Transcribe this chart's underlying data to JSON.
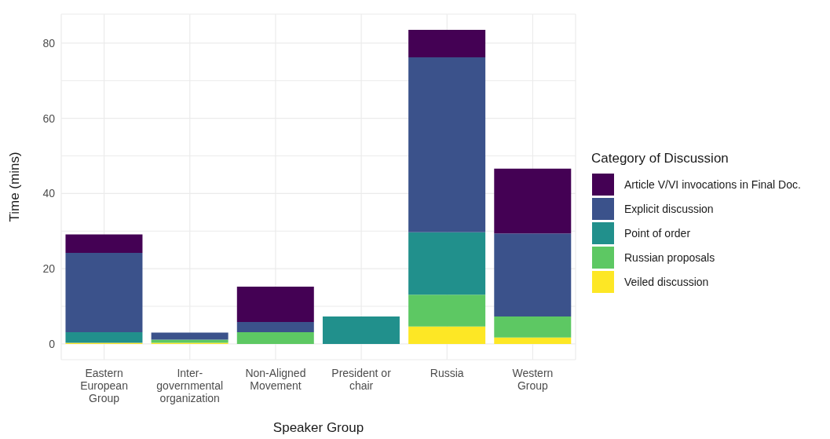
{
  "chart_data": {
    "type": "bar",
    "stacked": true,
    "xlabel": "Speaker Group",
    "ylabel": "Time (mins)",
    "legend_title": "Category of Discussion",
    "legend": "right",
    "categories": [
      "Eastern European Group",
      "Inter-governmental organization",
      "Non-Aligned Movement",
      "President or chair",
      "Russia",
      "Western Group"
    ],
    "series": [
      {
        "name": "Veiled discussion",
        "color": "#fde725",
        "values": [
          0.3,
          0.3,
          0,
          0,
          4.6,
          1.7
        ]
      },
      {
        "name": "Russian proposals",
        "color": "#5dc863",
        "values": [
          0,
          0.8,
          3.1,
          0,
          8.5,
          5.6
        ]
      },
      {
        "name": "Point of order",
        "color": "#21908c",
        "values": [
          2.8,
          0,
          0,
          7.3,
          16.6,
          0
        ]
      },
      {
        "name": "Explicit discussion",
        "color": "#3b528b",
        "values": [
          21.1,
          1.9,
          2.7,
          0,
          46.5,
          22.1
        ]
      },
      {
        "name": "Article V/VI invocations in Final Doc.",
        "color": "#440154",
        "values": [
          4.9,
          0,
          9.4,
          0,
          7.3,
          17.2
        ]
      }
    ],
    "ylim": [
      -4.2,
      87.7
    ],
    "yticks": [
      0,
      {
        "value": 10,
        "label": null
      },
      20,
      {
        "value": 30,
        "label": null
      },
      40,
      {
        "value": 50,
        "label": null
      },
      60,
      {
        "value": 70,
        "label": null
      },
      80
    ],
    "grid": true
  }
}
